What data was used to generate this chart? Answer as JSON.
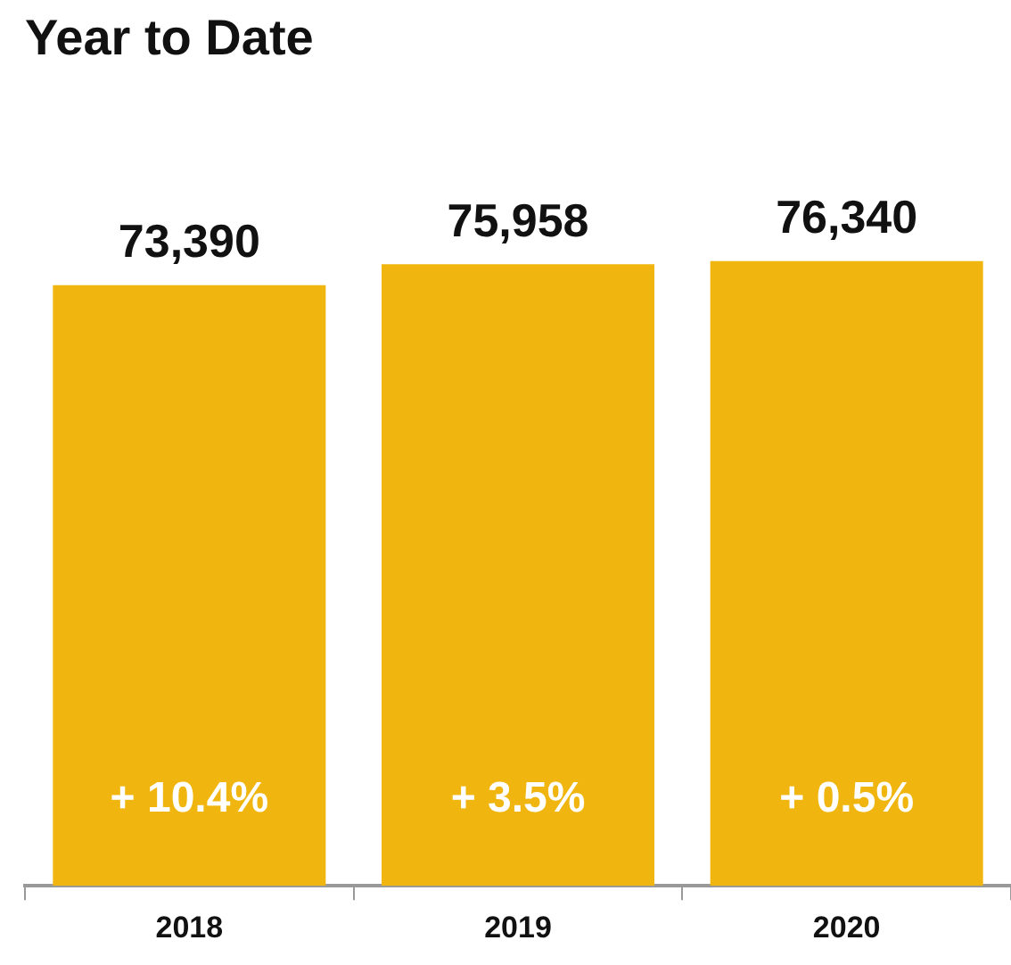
{
  "chart_data": {
    "type": "bar",
    "title": "Year to Date",
    "categories": [
      "2018",
      "2019",
      "2020"
    ],
    "values": [
      73390,
      75958,
      76340
    ],
    "color": "#f0b60f",
    "data_labels": true,
    "value_labels": [
      "73,390",
      "75,958",
      "76,340"
    ],
    "annotations": [
      "+ 10.4%",
      "+ 3.5%",
      "+ 0.5%"
    ],
    "legend": false
  }
}
